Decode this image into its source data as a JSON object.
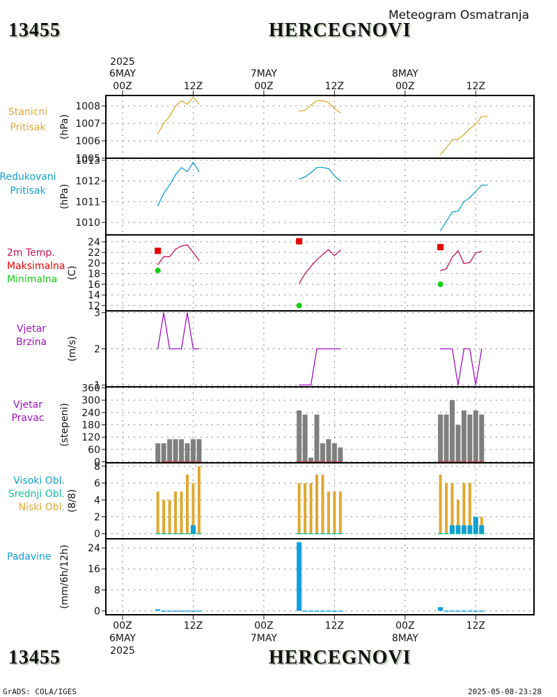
{
  "header": {
    "station_id": "13455",
    "station_name": "HERCEGNOVI",
    "subtitle": "Meteogram Osmatranja"
  },
  "footer": {
    "station_id": "13455",
    "station_name": "HERCEGNOVI",
    "credit": "GrADS: COLA/IGES",
    "timestamp": "2025-05-08-23:28"
  },
  "time_axis": {
    "year": "2025",
    "ticks": [
      {
        "hour": 0,
        "label": "00Z",
        "date": "6MAY",
        "year": "2025"
      },
      {
        "hour": 12,
        "label": "12Z",
        "date": "",
        "year": ""
      },
      {
        "hour": 24,
        "label": "00Z",
        "date": "7MAY",
        "year": ""
      },
      {
        "hour": 36,
        "label": "12Z",
        "date": "",
        "year": ""
      },
      {
        "hour": 48,
        "label": "00Z",
        "date": "8MAY",
        "year": ""
      },
      {
        "hour": 60,
        "label": "12Z",
        "date": "",
        "year": ""
      }
    ],
    "range_hours": [
      -3,
      70
    ]
  },
  "colors": {
    "station_pressure": "#e0a830",
    "reduced_pressure": "#10a0d0",
    "temperature": "#c0105a",
    "tmax": "#e80000",
    "tmin": "#10d010",
    "wind_speed": "#a010c0",
    "wind_dir": "#7f7f7f",
    "wind_dir_calm": "#e02020",
    "cloud_high": "#10a0d0",
    "cloud_mid": "#10c0a0",
    "cloud_low": "#e0a830",
    "precip": "#10a0e0",
    "grid": "#808080"
  },
  "chart_data": [
    {
      "type": "line",
      "id": "station_pressure",
      "title": [
        "Stanicni",
        "Pritisak"
      ],
      "ylabel": "(hPa)",
      "ylim": [
        1005,
        1008.6
      ],
      "yticks": [
        1005,
        1006,
        1007,
        1008
      ],
      "series": [
        {
          "name": "Stanicni Pritisak",
          "segments": [
            {
              "x": [
                6,
                7,
                8,
                9,
                10,
                11,
                12,
                13
              ],
              "y": [
                1006.4,
                1007.0,
                1007.4,
                1008.0,
                1008.3,
                1008.1,
                1008.5,
                1008.1
              ]
            },
            {
              "x": [
                30,
                31,
                32,
                33,
                34,
                35,
                36,
                37
              ],
              "y": [
                1007.7,
                1007.75,
                1008.05,
                1008.3,
                1008.3,
                1008.2,
                1007.85,
                1007.6
              ]
            },
            {
              "x": [
                54,
                55,
                56,
                57,
                58,
                59,
                60,
                61,
                62
              ],
              "y": [
                1005.2,
                1005.6,
                1006.05,
                1006.1,
                1006.35,
                1006.7,
                1006.95,
                1007.4,
                1007.4
              ]
            }
          ]
        }
      ]
    },
    {
      "type": "line",
      "id": "reduced_pressure",
      "title": [
        "Redukovani",
        "Pritisak"
      ],
      "ylabel": "(hPa)",
      "ylim": [
        1009.4,
        1013.1
      ],
      "yticks": [
        1010,
        1011,
        1012,
        1013
      ],
      "series": [
        {
          "name": "Redukovani Pritisak",
          "segments": [
            {
              "x": [
                6,
                7,
                8,
                9,
                10,
                11,
                12,
                13
              ],
              "y": [
                1010.8,
                1011.4,
                1011.8,
                1012.3,
                1012.65,
                1012.45,
                1012.9,
                1012.45
              ]
            },
            {
              "x": [
                30,
                31,
                32,
                33,
                34,
                35,
                36,
                37
              ],
              "y": [
                1012.1,
                1012.2,
                1012.4,
                1012.65,
                1012.65,
                1012.6,
                1012.25,
                1012.0
              ]
            },
            {
              "x": [
                54,
                55,
                56,
                57,
                58,
                59,
                60,
                61,
                62
              ],
              "y": [
                1009.6,
                1010.05,
                1010.5,
                1010.55,
                1011.0,
                1011.2,
                1011.5,
                1011.8,
                1011.8
              ]
            }
          ]
        }
      ]
    },
    {
      "type": "line",
      "id": "temperature",
      "title": [
        "2m Temp.",
        "Maksimalna",
        "Minimalna"
      ],
      "ylabel": "(C)",
      "ylim": [
        11,
        25.3
      ],
      "yticks": [
        12,
        14,
        16,
        18,
        20,
        22,
        24
      ],
      "series": [
        {
          "name": "2m Temp.",
          "segments": [
            {
              "x": [
                6,
                7,
                8,
                9,
                10,
                11,
                12,
                13
              ],
              "y": [
                19.7,
                21.2,
                21.2,
                22.6,
                23.2,
                23.4,
                22.0,
                20.5
              ]
            },
            {
              "x": [
                30,
                31,
                32,
                33,
                34,
                35,
                36,
                37
              ],
              "y": [
                16.1,
                18.0,
                19.4,
                20.6,
                21.6,
                22.5,
                21.4,
                22.4
              ]
            },
            {
              "x": [
                54,
                55,
                56,
                57,
                58,
                59,
                60,
                61
              ],
              "y": [
                18.6,
                18.9,
                21.1,
                22.3,
                19.9,
                20.1,
                21.9,
                22.2
              ]
            }
          ]
        }
      ],
      "tmax": {
        "x": [
          6,
          30,
          54
        ],
        "y": [
          22.3,
          24.1,
          23.0
        ]
      },
      "tmin": {
        "x": [
          6,
          30,
          54
        ],
        "y": [
          18.6,
          12.0,
          16.0
        ]
      }
    },
    {
      "type": "line",
      "id": "wind_speed",
      "title": [
        "Vjetar",
        "Brzina"
      ],
      "ylabel": "(m/s)",
      "ylim": [
        0.95,
        3.05
      ],
      "yticks": [
        1,
        2,
        3
      ],
      "series": [
        {
          "name": "Vjetar Brzina",
          "segments": [
            {
              "x": [
                6,
                7,
                8,
                9,
                10,
                11,
                12,
                13
              ],
              "y": [
                2,
                3,
                2,
                2,
                2,
                3,
                2,
                2
              ]
            },
            {
              "x": [
                30,
                31,
                32,
                33,
                34,
                35,
                36,
                37
              ],
              "y": [
                1,
                1,
                1,
                2,
                2,
                2,
                2,
                2
              ]
            },
            {
              "x": [
                54,
                55,
                56,
                57,
                58,
                59,
                60,
                61
              ],
              "y": [
                2,
                2,
                2,
                1,
                2,
                2,
                1,
                2
              ]
            }
          ]
        }
      ]
    },
    {
      "type": "bar",
      "id": "wind_direction",
      "title": [
        "Vjetar",
        "Pravac"
      ],
      "ylabel": "(stepeni)",
      "ylim": [
        -5,
        365
      ],
      "yticks": [
        0,
        60,
        120,
        180,
        240,
        300,
        360
      ],
      "series": [
        {
          "name": "Vjetar Pravac",
          "x": [
            6,
            7,
            8,
            9,
            10,
            11,
            12,
            13,
            30,
            31,
            32,
            33,
            34,
            35,
            36,
            37,
            54,
            55,
            56,
            57,
            58,
            59,
            60,
            61
          ],
          "y": [
            90,
            90,
            110,
            110,
            110,
            90,
            110,
            110,
            250,
            230,
            20,
            230,
            90,
            110,
            90,
            70,
            230,
            230,
            300,
            180,
            250,
            230,
            250,
            230
          ]
        }
      ],
      "calm_segments": [
        [
          7,
          13
        ],
        [
          30,
          37
        ],
        [
          54,
          61
        ]
      ]
    },
    {
      "type": "bar",
      "id": "clouds",
      "title": [
        "Visoki Obl.",
        "Srednji Obl.",
        "Niski Obl."
      ],
      "ylabel": "(8/8)",
      "ylim": [
        -0.6,
        8.4
      ],
      "yticks": [
        0,
        2,
        4,
        6,
        8
      ],
      "series": [
        {
          "name": "Niski Obl.",
          "x": [
            6,
            7,
            8,
            9,
            10,
            11,
            12,
            13,
            30,
            31,
            32,
            33,
            34,
            35,
            36,
            37,
            54,
            55,
            56,
            57,
            58,
            59,
            60,
            61
          ],
          "y": [
            5,
            4,
            4,
            5,
            5,
            7,
            6,
            8,
            6,
            6,
            6,
            7,
            7,
            5,
            5,
            5,
            7,
            6,
            6,
            4,
            6,
            6,
            2,
            2
          ]
        },
        {
          "name": "Srednji Obl.",
          "x": [
            6,
            7,
            8,
            9,
            10,
            11,
            12,
            13,
            30,
            31,
            32,
            33,
            34,
            35,
            36,
            37,
            54,
            55,
            56,
            57,
            58,
            59,
            60,
            61
          ],
          "y": [
            0,
            0,
            0,
            0,
            0,
            0,
            0,
            0,
            0,
            0,
            0,
            0,
            0,
            0,
            0,
            0,
            0,
            0,
            0,
            0,
            0,
            0,
            0,
            0
          ]
        },
        {
          "name": "Visoki Obl.",
          "x": [
            6,
            7,
            8,
            9,
            10,
            11,
            12,
            13,
            30,
            31,
            32,
            33,
            34,
            35,
            36,
            37,
            54,
            55,
            56,
            57,
            58,
            59,
            60,
            61
          ],
          "y": [
            0,
            0,
            0,
            0,
            0,
            0,
            1,
            0,
            0,
            0,
            0,
            0,
            0,
            0,
            0,
            0,
            0,
            0,
            1,
            1,
            1,
            1,
            2,
            1
          ]
        }
      ]
    },
    {
      "type": "bar",
      "id": "precipitation",
      "title": [
        "Padavine"
      ],
      "ylabel": "(mm/6h/12h)",
      "ylim": [
        -1.5,
        27.5
      ],
      "yticks": [
        0,
        8,
        16,
        24
      ],
      "series": [
        {
          "name": "Padavine",
          "x": [
            6,
            7,
            8,
            9,
            10,
            11,
            12,
            13,
            30,
            31,
            32,
            33,
            34,
            35,
            36,
            37,
            54,
            55,
            56,
            57,
            58,
            59,
            60,
            61
          ],
          "y": [
            0.6,
            0.1,
            0.1,
            0.1,
            0.1,
            0.1,
            0.1,
            0.1,
            26.2,
            0.1,
            0.1,
            0.1,
            0.1,
            0.1,
            0.1,
            0.1,
            1.4,
            0.1,
            0.1,
            0.1,
            0.1,
            0.1,
            0.1,
            0.1
          ]
        }
      ]
    }
  ]
}
